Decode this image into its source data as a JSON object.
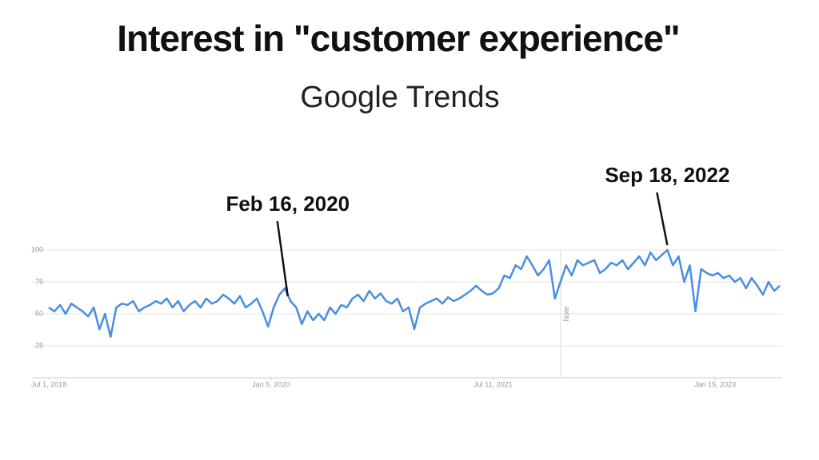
{
  "chart_data": {
    "type": "line",
    "title": "Interest in \"customer experience\"",
    "subtitle": "Google Trends",
    "x": [
      "2018-07-01",
      "2018-07-15",
      "2018-07-29",
      "2018-08-12",
      "2018-08-26",
      "2018-09-09",
      "2018-09-23",
      "2018-10-07",
      "2018-10-21",
      "2018-11-04",
      "2018-11-18",
      "2018-12-02",
      "2018-12-16",
      "2018-12-30",
      "2019-01-13",
      "2019-01-27",
      "2019-02-10",
      "2019-02-24",
      "2019-03-10",
      "2019-03-24",
      "2019-04-07",
      "2019-04-21",
      "2019-05-05",
      "2019-05-19",
      "2019-06-02",
      "2019-06-16",
      "2019-06-30",
      "2019-07-14",
      "2019-07-28",
      "2019-08-11",
      "2019-08-25",
      "2019-09-08",
      "2019-09-22",
      "2019-10-06",
      "2019-10-20",
      "2019-11-03",
      "2019-11-17",
      "2019-12-01",
      "2019-12-15",
      "2019-12-29",
      "2020-01-12",
      "2020-01-26",
      "2020-02-09",
      "2020-02-23",
      "2020-03-08",
      "2020-03-22",
      "2020-04-05",
      "2020-04-19",
      "2020-05-03",
      "2020-05-17",
      "2020-05-31",
      "2020-06-14",
      "2020-06-28",
      "2020-07-12",
      "2020-07-26",
      "2020-08-09",
      "2020-08-23",
      "2020-09-06",
      "2020-09-20",
      "2020-10-04",
      "2020-10-18",
      "2020-11-01",
      "2020-11-15",
      "2020-11-29",
      "2020-12-13",
      "2020-12-27",
      "2021-01-10",
      "2021-01-24",
      "2021-02-07",
      "2021-02-21",
      "2021-03-07",
      "2021-03-21",
      "2021-04-04",
      "2021-04-18",
      "2021-05-02",
      "2021-05-16",
      "2021-05-30",
      "2021-06-13",
      "2021-06-27",
      "2021-07-11",
      "2021-07-25",
      "2021-08-08",
      "2021-08-22",
      "2021-09-05",
      "2021-09-19",
      "2021-10-03",
      "2021-10-17",
      "2021-10-31",
      "2021-11-14",
      "2021-11-28",
      "2021-12-12",
      "2021-12-26",
      "2022-01-09",
      "2022-01-23",
      "2022-02-06",
      "2022-02-20",
      "2022-03-06",
      "2022-03-20",
      "2022-04-03",
      "2022-04-17",
      "2022-05-01",
      "2022-05-15",
      "2022-05-29",
      "2022-06-12",
      "2022-06-26",
      "2022-07-10",
      "2022-07-24",
      "2022-08-07",
      "2022-08-21",
      "2022-09-04",
      "2022-09-18",
      "2022-10-02",
      "2022-10-16",
      "2022-10-30",
      "2022-11-13",
      "2022-11-27",
      "2022-12-11",
      "2022-12-25",
      "2023-01-08",
      "2023-01-22",
      "2023-02-05",
      "2023-02-19",
      "2023-03-05",
      "2023-03-19",
      "2023-04-02",
      "2023-04-16",
      "2023-04-30",
      "2023-05-14",
      "2023-05-28",
      "2023-06-11",
      "2023-06-25"
    ],
    "series": [
      {
        "color": "#4a8ee0",
        "values": [
          55,
          52,
          57,
          50,
          58,
          55,
          52,
          48,
          55,
          38,
          50,
          32,
          55,
          58,
          57,
          60,
          52,
          55,
          57,
          60,
          58,
          62,
          55,
          60,
          52,
          57,
          60,
          55,
          62,
          58,
          60,
          65,
          62,
          58,
          64,
          55,
          58,
          62,
          52,
          40,
          55,
          65,
          70,
          60,
          55,
          42,
          52,
          45,
          50,
          45,
          55,
          50,
          57,
          55,
          62,
          65,
          60,
          68,
          62,
          66,
          60,
          58,
          62,
          52,
          55,
          38,
          55,
          58,
          60,
          62,
          58,
          63,
          60,
          62,
          65,
          68,
          72,
          68,
          65,
          66,
          70,
          80,
          78,
          88,
          85,
          95,
          88,
          80,
          85,
          92,
          62,
          75,
          88,
          80,
          92,
          88,
          90,
          92,
          82,
          85,
          90,
          88,
          92,
          85,
          90,
          95,
          88,
          98,
          92,
          96,
          100,
          88,
          95,
          75,
          88,
          52,
          85,
          82,
          80,
          82,
          78,
          80,
          75,
          78,
          70,
          78,
          72,
          65,
          75,
          68,
          72
        ]
      }
    ],
    "xlim": [
      "2018-07-01",
      "2023-06-25"
    ],
    "ylim": [
      0,
      100
    ],
    "yticks": [
      25,
      50,
      75,
      100
    ],
    "xticks": [
      {
        "value": "2018-07-01",
        "label": "Jul 1, 2018"
      },
      {
        "value": "2020-01-05",
        "label": "Jan 5, 2020"
      },
      {
        "value": "2021-07-11",
        "label": "Jul 11, 2021"
      },
      {
        "value": "2023-01-15",
        "label": "Jan 15, 2023"
      }
    ],
    "grid": true,
    "note": {
      "text": "Note",
      "x": "2021-12-26"
    },
    "annotations": [
      {
        "text": "Feb 16, 2020",
        "x": "2020-02-16"
      },
      {
        "text": "Sep 18, 2022",
        "x": "2022-09-18"
      }
    ]
  }
}
